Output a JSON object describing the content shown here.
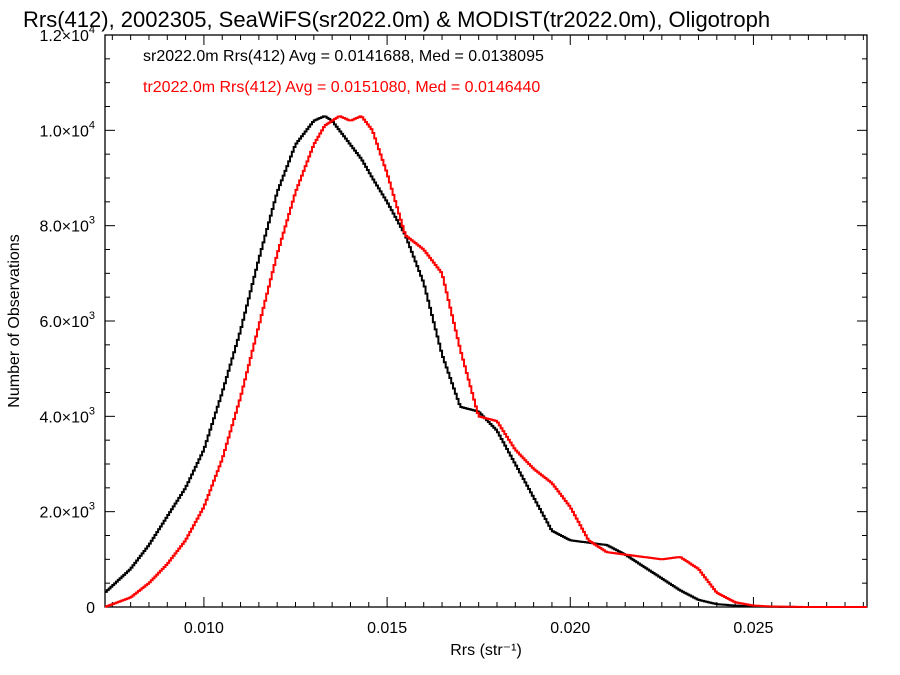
{
  "chart_data": {
    "type": "line",
    "title": "Rrs(412), 2002305, SeaWiFS(sr2022.0m) & MODIST(tr2022.0m), Oligotroph",
    "xlabel": "Rrs (str⁻¹)",
    "ylabel": "Number of Observations",
    "xlim": [
      0.0073,
      0.0281
    ],
    "ylim": [
      0,
      12000
    ],
    "xticks": [
      {
        "value": 0.01,
        "label": "0.010"
      },
      {
        "value": 0.015,
        "label": "0.015"
      },
      {
        "value": 0.02,
        "label": "0.020"
      },
      {
        "value": 0.025,
        "label": "0.025"
      }
    ],
    "yticks": [
      {
        "value": 0,
        "mant": "0",
        "exp": ""
      },
      {
        "value": 2000,
        "mant": "2.0×10",
        "exp": "3"
      },
      {
        "value": 4000,
        "mant": "4.0×10",
        "exp": "3"
      },
      {
        "value": 6000,
        "mant": "6.0×10",
        "exp": "3"
      },
      {
        "value": 8000,
        "mant": "8.0×10",
        "exp": "3"
      },
      {
        "value": 10000,
        "mant": "1.0×10",
        "exp": "4"
      },
      {
        "value": 12000,
        "mant": "1.2×10",
        "exp": "4"
      }
    ],
    "annotations": [
      "sr2022.0m Rrs(412) Avg = 0.0141688, Med = 0.0138095",
      "tr2022.0m Rrs(412) Avg = 0.0151080, Med = 0.0146440"
    ],
    "series": [
      {
        "color": "#000000",
        "x": [
          0.0073,
          0.008,
          0.0085,
          0.009,
          0.0095,
          0.01,
          0.0105,
          0.011,
          0.0115,
          0.012,
          0.0125,
          0.013,
          0.0133,
          0.0135,
          0.0137,
          0.014,
          0.0143,
          0.0146,
          0.015,
          0.0155,
          0.016,
          0.0165,
          0.017,
          0.0175,
          0.018,
          0.0185,
          0.019,
          0.0195,
          0.02,
          0.0205,
          0.021,
          0.0215,
          0.022,
          0.0225,
          0.023,
          0.0235,
          0.024,
          0.0245,
          0.025,
          0.0255,
          0.026,
          0.0265,
          0.0281
        ],
        "y": [
          300,
          800,
          1300,
          1900,
          2500,
          3300,
          4500,
          5800,
          7300,
          8700,
          9700,
          10200,
          10300,
          10200,
          10000,
          9700,
          9400,
          9000,
          8500,
          7800,
          6800,
          5300,
          4200,
          4100,
          3700,
          3000,
          2300,
          1600,
          1400,
          1350,
          1300,
          1100,
          850,
          600,
          350,
          150,
          60,
          30,
          15,
          5,
          2,
          0,
          0
        ]
      },
      {
        "color": "#ff0000",
        "x": [
          0.0073,
          0.008,
          0.0085,
          0.009,
          0.0095,
          0.01,
          0.0105,
          0.011,
          0.0115,
          0.012,
          0.0125,
          0.013,
          0.0133,
          0.0135,
          0.0137,
          0.014,
          0.0143,
          0.0146,
          0.015,
          0.0155,
          0.016,
          0.0165,
          0.017,
          0.0175,
          0.018,
          0.0185,
          0.019,
          0.0195,
          0.02,
          0.0205,
          0.021,
          0.0215,
          0.022,
          0.0225,
          0.023,
          0.0235,
          0.024,
          0.0245,
          0.025,
          0.0255,
          0.026,
          0.0265,
          0.0281
        ],
        "y": [
          0,
          200,
          500,
          900,
          1400,
          2100,
          3100,
          4400,
          5900,
          7400,
          8700,
          9700,
          10100,
          10200,
          10300,
          10200,
          10300,
          10000,
          9100,
          7800,
          7500,
          7000,
          5400,
          4000,
          3900,
          3300,
          2900,
          2600,
          2100,
          1400,
          1150,
          1100,
          1050,
          1000,
          1050,
          800,
          300,
          100,
          30,
          10,
          5,
          0,
          0
        ]
      }
    ],
    "grid": false,
    "legend": "none"
  }
}
